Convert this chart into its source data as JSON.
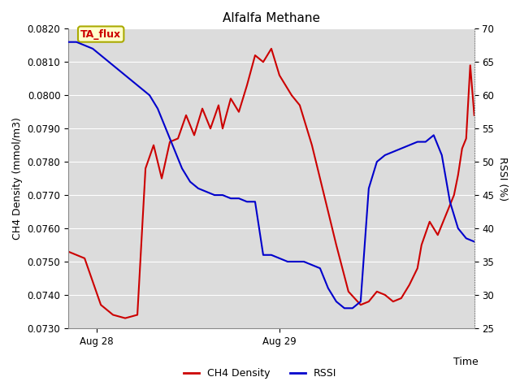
{
  "title": "Alfalfa Methane",
  "xlabel": "Time",
  "ylabel_left": "CH4 Density (mmol/m3)",
  "ylabel_right": "RSSI (%)",
  "annotation_text": "TA_flux",
  "ylim_left": [
    0.073,
    0.082
  ],
  "ylim_right": [
    25,
    70
  ],
  "yticks_left": [
    0.073,
    0.074,
    0.075,
    0.076,
    0.077,
    0.078,
    0.079,
    0.08,
    0.081,
    0.082
  ],
  "yticks_right": [
    25,
    30,
    35,
    40,
    45,
    50,
    55,
    60,
    65,
    70
  ],
  "color_ch4": "#cc0000",
  "color_rssi": "#0000cc",
  "bg_color": "#dcdcdc",
  "ch4_x": [
    0,
    4,
    8,
    11,
    14,
    17,
    19,
    21,
    23,
    25,
    27,
    29,
    31,
    33,
    35,
    37,
    38,
    40,
    42,
    44,
    46,
    48,
    50,
    52,
    55,
    57,
    60,
    63,
    66,
    69,
    72,
    74,
    76,
    78,
    80,
    82,
    84,
    86,
    87,
    89,
    91,
    93,
    95,
    96,
    97,
    98,
    99,
    100
  ],
  "ch4_y": [
    0.0753,
    0.0751,
    0.0737,
    0.0734,
    0.0733,
    0.0734,
    0.0778,
    0.0785,
    0.0775,
    0.0786,
    0.0787,
    0.0794,
    0.0788,
    0.0796,
    0.079,
    0.0797,
    0.079,
    0.0799,
    0.0795,
    0.0803,
    0.0812,
    0.081,
    0.0814,
    0.0806,
    0.08,
    0.0797,
    0.0785,
    0.077,
    0.0755,
    0.0741,
    0.0737,
    0.0738,
    0.0741,
    0.074,
    0.0738,
    0.0739,
    0.0743,
    0.0748,
    0.0755,
    0.0762,
    0.0758,
    0.0764,
    0.077,
    0.0776,
    0.0784,
    0.0787,
    0.0809,
    0.0794
  ],
  "rssi_x": [
    0,
    2,
    4,
    6,
    8,
    10,
    12,
    14,
    16,
    18,
    20,
    22,
    24,
    26,
    28,
    30,
    32,
    34,
    36,
    38,
    40,
    42,
    44,
    46,
    48,
    50,
    52,
    54,
    56,
    58,
    60,
    62,
    64,
    66,
    68,
    70,
    72,
    74,
    76,
    78,
    80,
    82,
    84,
    86,
    88,
    90,
    92,
    94,
    96,
    98,
    100
  ],
  "rssi_y": [
    68,
    68,
    67.5,
    67,
    66,
    65,
    64,
    63,
    62,
    61,
    60,
    58,
    55,
    52,
    49,
    47,
    46,
    45.5,
    45,
    45,
    44.5,
    44.5,
    44,
    44,
    36,
    36,
    35.5,
    35,
    35,
    35,
    34.5,
    34,
    31,
    29,
    28,
    28,
    29,
    46,
    50,
    51,
    51.5,
    52,
    52.5,
    53,
    53,
    54,
    51,
    44,
    40,
    38.5,
    38
  ]
}
